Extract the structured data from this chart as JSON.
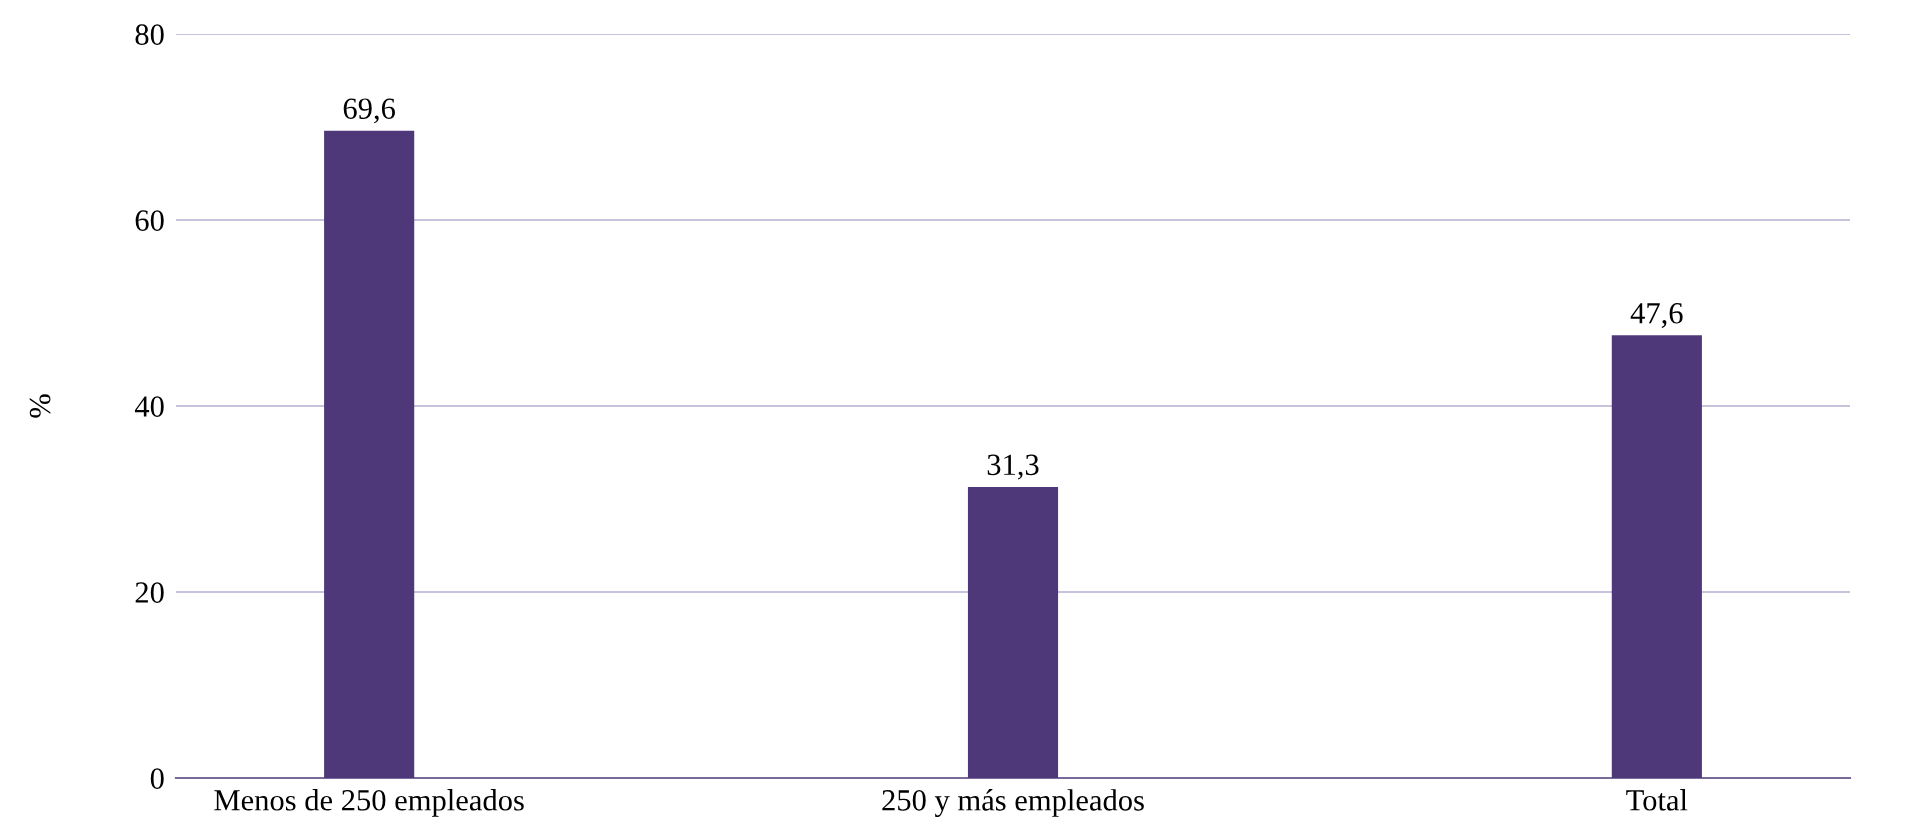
{
  "chart_data": {
    "type": "bar",
    "ylabel": "%",
    "categories": [
      "Menos de 250 empleados",
      "250 y más empleados",
      "Total"
    ],
    "values": [
      69.6,
      31.3,
      47.6
    ],
    "color": "#4f3879",
    "value_labels": [
      "69,6",
      "31,3",
      "47,6"
    ],
    "ylim": [
      0,
      80
    ],
    "yticks": [
      0,
      20,
      40,
      60,
      80
    ],
    "grid": "y"
  }
}
